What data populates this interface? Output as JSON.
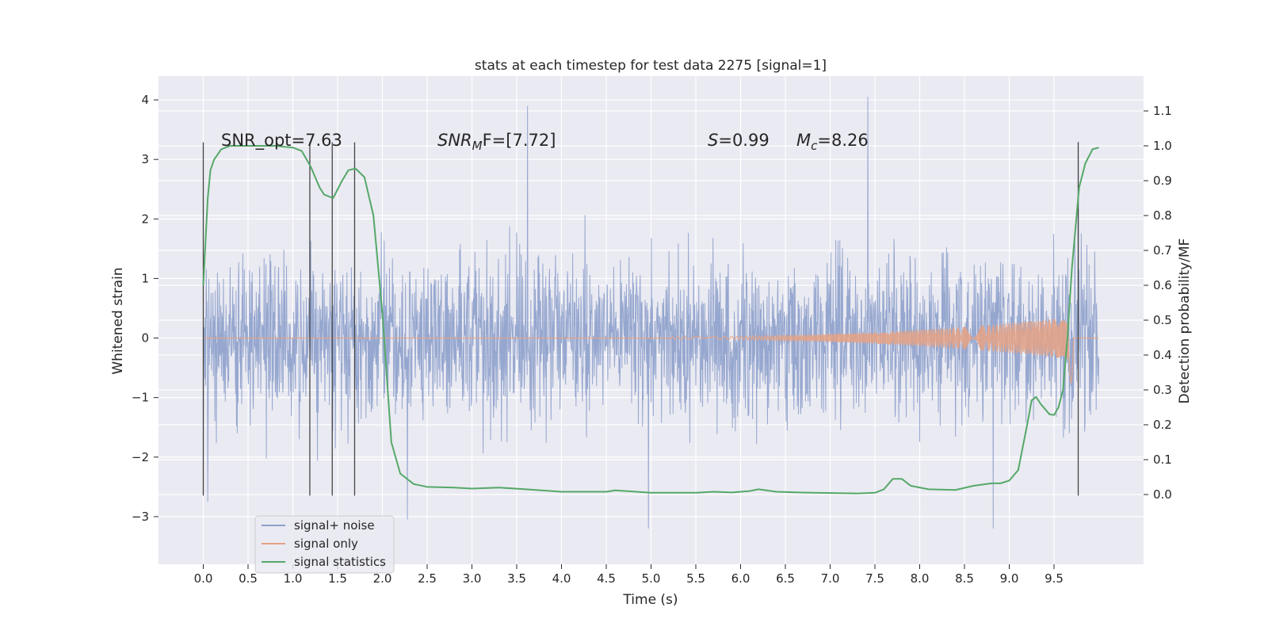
{
  "chart_data": {
    "type": "line",
    "title": "stats at each timestep for test data 2275 [signal=1]",
    "xlabel": "Time (s)",
    "ylabel_left": "Whitened strain",
    "ylabel_right": "Detection probability/MF",
    "xlim": [
      -0.5,
      10.5
    ],
    "ylim_left": [
      -3.8,
      4.4
    ],
    "ylim_right": [
      -0.2,
      1.2
    ],
    "x_ticks": [
      0.0,
      0.5,
      1.0,
      1.5,
      2.0,
      2.5,
      3.0,
      3.5,
      4.0,
      4.5,
      5.0,
      5.5,
      6.0,
      6.5,
      7.0,
      7.5,
      8.0,
      8.5,
      9.0,
      9.5
    ],
    "x_tick_labels": [
      "0.0",
      "0.5",
      "1.0",
      "1.5",
      "2.0",
      "2.5",
      "3.0",
      "3.5",
      "4.0",
      "4.5",
      "5.0",
      "5.5",
      "6.0",
      "6.5",
      "7.0",
      "7.5",
      "8.0",
      "8.5",
      "9.0",
      "9.5"
    ],
    "y_left_ticks": [
      -3,
      -2,
      -1,
      0,
      1,
      2,
      3,
      4
    ],
    "y_left_tick_labels": [
      "−3",
      "−2",
      "−1",
      "0",
      "1",
      "2",
      "3",
      "4"
    ],
    "y_right_ticks": [
      0.0,
      0.1,
      0.2,
      0.3,
      0.4,
      0.5,
      0.6,
      0.7,
      0.8,
      0.9,
      1.0,
      1.1
    ],
    "y_right_tick_labels": [
      "0.0",
      "0.1",
      "0.2",
      "0.3",
      "0.4",
      "0.5",
      "0.6",
      "0.7",
      "0.8",
      "0.9",
      "1.0",
      "1.1"
    ],
    "annotations": {
      "snr_opt": "SNR_opt=7.63",
      "snr_mf_symbol": "SNR",
      "snr_mf_subscript": "M",
      "snr_mf_rest": "F=[7.72]",
      "s_symbol": "S",
      "s_value": "=0.99",
      "mc_symbol": "M",
      "mc_subscript": "c",
      "mc_value": "=8.26"
    },
    "vertical_markers_s": [
      0.0,
      1.19,
      1.44,
      1.69,
      9.77
    ],
    "legend": {
      "placement": "lower-left",
      "entries": [
        {
          "label": "signal+ noise",
          "color": "#8da0cb"
        },
        {
          "label": "signal only",
          "color": "#e5a285"
        },
        {
          "label": "signal statistics",
          "color": "#55a868"
        }
      ]
    },
    "series": [
      {
        "name": "signal+ noise",
        "axis": "left",
        "color": "#8da0cb",
        "x_range": [
          0.0,
          10.0
        ],
        "envelope": "approx. ±2 bulk, peaks to about 4.0 and −3.2",
        "peak_points": {
          "x": [
            3.62,
            7.42,
            8.82,
            4.97,
            2.28,
            9.77,
            0.05
          ],
          "y": [
            3.9,
            4.05,
            -3.2,
            -3.2,
            -3.05,
            3.3,
            -2.75
          ]
        }
      },
      {
        "name": "signal only",
        "axis": "left",
        "color": "#e5a285",
        "x_range": [
          0.0,
          10.0
        ],
        "description": "chirp: ~0 until 5.5 s, grows to ±0.35 by 9.6 s, peaks near -0.75 at 9.7 s, then ~0"
      },
      {
        "name": "signal statistics",
        "axis": "right",
        "color": "#55a868",
        "x": [
          0.0,
          0.05,
          0.08,
          0.12,
          0.2,
          0.3,
          0.5,
          0.8,
          1.0,
          1.1,
          1.2,
          1.3,
          1.35,
          1.45,
          1.55,
          1.62,
          1.7,
          1.8,
          1.9,
          2.0,
          2.1,
          2.2,
          2.35,
          2.5,
          2.8,
          3.0,
          3.3,
          3.6,
          4.0,
          4.5,
          4.6,
          5.0,
          5.5,
          5.7,
          5.9,
          6.1,
          6.2,
          6.4,
          6.8,
          7.3,
          7.5,
          7.6,
          7.7,
          7.8,
          7.9,
          8.1,
          8.4,
          8.6,
          8.8,
          8.9,
          9.0,
          9.1,
          9.2,
          9.25,
          9.3,
          9.35,
          9.45,
          9.5,
          9.55,
          9.6,
          9.65,
          9.7,
          9.78,
          9.85,
          9.93,
          10.0
        ],
        "y": [
          0.6,
          0.85,
          0.93,
          0.96,
          0.99,
          1.0,
          1.0,
          1.0,
          0.995,
          0.985,
          0.94,
          0.88,
          0.86,
          0.85,
          0.9,
          0.93,
          0.935,
          0.91,
          0.8,
          0.52,
          0.15,
          0.06,
          0.03,
          0.022,
          0.02,
          0.017,
          0.02,
          0.015,
          0.008,
          0.008,
          0.012,
          0.005,
          0.005,
          0.008,
          0.006,
          0.01,
          0.015,
          0.008,
          0.005,
          0.003,
          0.005,
          0.015,
          0.045,
          0.045,
          0.025,
          0.015,
          0.013,
          0.025,
          0.032,
          0.032,
          0.04,
          0.07,
          0.2,
          0.27,
          0.28,
          0.26,
          0.23,
          0.228,
          0.25,
          0.3,
          0.45,
          0.65,
          0.88,
          0.95,
          0.99,
          0.995
        ]
      }
    ]
  }
}
